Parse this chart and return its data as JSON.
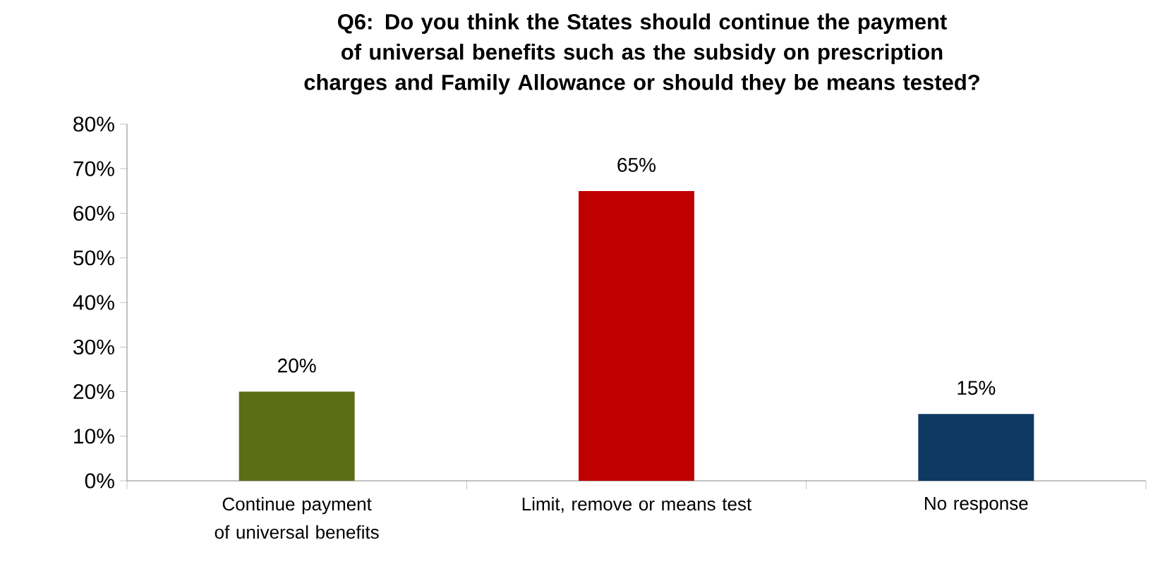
{
  "chart_data": {
    "type": "bar",
    "title": "Q6: Do you think the States should continue the payment of universal benefits such as the subsidy on prescription charges and Family Allowance or should they be means tested?",
    "categories": [
      "Continue payment of universal benefits",
      "Limit, remove or means test",
      "No response"
    ],
    "values": [
      20,
      65,
      15
    ],
    "colors": [
      "#5b6e17",
      "#c00000",
      "#0e3a62"
    ],
    "value_labels": [
      "20%",
      "65%",
      "15%"
    ],
    "ylim": [
      0,
      80
    ],
    "yticks": [
      {
        "value": 0,
        "label": "0%"
      },
      {
        "value": 10,
        "label": "10%"
      },
      {
        "value": 20,
        "label": "20%"
      },
      {
        "value": 30,
        "label": "30%"
      },
      {
        "value": 40,
        "label": "40%"
      },
      {
        "value": 50,
        "label": "50%"
      },
      {
        "value": 60,
        "label": "60%"
      },
      {
        "value": 70,
        "label": "70%"
      },
      {
        "value": 80,
        "label": "80%"
      }
    ],
    "grid": false
  }
}
